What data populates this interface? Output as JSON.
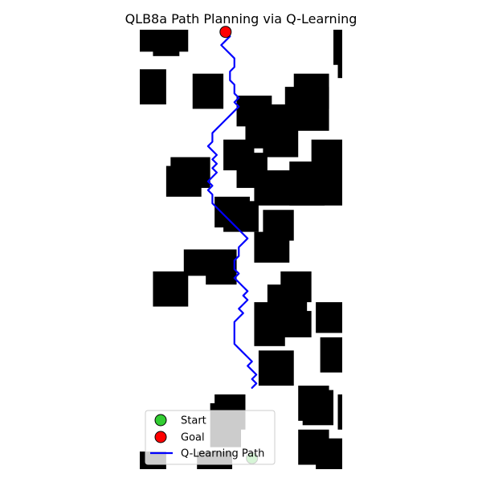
{
  "chart_data": {
    "type": "line",
    "title": "QLB8a Path Planning via Q-Learning",
    "xlabel": "",
    "ylabel": "",
    "xlim": [
      0,
      46
    ],
    "ylim": [
      0,
      100
    ],
    "y_inverted": true,
    "axes_visible": false,
    "grid": false,
    "legend_position": "lower center",
    "colors": {
      "obstacle": "#000000",
      "free": "#ffffff",
      "path": "#0000ff",
      "start": "#32cd32",
      "goal": "#ff0000"
    },
    "obstacles": [
      [
        0,
        0,
        11,
        5
      ],
      [
        3,
        4,
        9,
        6
      ],
      [
        44,
        0,
        46,
        8
      ],
      [
        45,
        7,
        46,
        11
      ],
      [
        0,
        9,
        6,
        17
      ],
      [
        12,
        10,
        19,
        18
      ],
      [
        35,
        10,
        43,
        18
      ],
      [
        33,
        13,
        43,
        23
      ],
      [
        22,
        15,
        30,
        22
      ],
      [
        24,
        17,
        34,
        27
      ],
      [
        28,
        20,
        36,
        29
      ],
      [
        39,
        25,
        46,
        38
      ],
      [
        19,
        25,
        26,
        32
      ],
      [
        22,
        28,
        29,
        36
      ],
      [
        34,
        30,
        46,
        40
      ],
      [
        26,
        32,
        42,
        40
      ],
      [
        7,
        29,
        16,
        36
      ],
      [
        6,
        31,
        14,
        38
      ],
      [
        17,
        38,
        25,
        45
      ],
      [
        19,
        39,
        27,
        46
      ],
      [
        28,
        41,
        35,
        48
      ],
      [
        26,
        46,
        34,
        53
      ],
      [
        10,
        50,
        22,
        56
      ],
      [
        15,
        51,
        22,
        58
      ],
      [
        3,
        55,
        11,
        63
      ],
      [
        32,
        55,
        39,
        62
      ],
      [
        29,
        58,
        38,
        65
      ],
      [
        26,
        62,
        33,
        72
      ],
      [
        29,
        64,
        39,
        70
      ],
      [
        40,
        62,
        46,
        69
      ],
      [
        41,
        70,
        46,
        78
      ],
      [
        27,
        73,
        35,
        81
      ],
      [
        36,
        81,
        43,
        89
      ],
      [
        37,
        82,
        44,
        90
      ],
      [
        45,
        83,
        46,
        91
      ],
      [
        17,
        83,
        24,
        91
      ],
      [
        16,
        85,
        23,
        95
      ],
      [
        36,
        91,
        43,
        99
      ],
      [
        40,
        93,
        46,
        100
      ],
      [
        0,
        96,
        6,
        100
      ],
      [
        13,
        96,
        21,
        100
      ]
    ],
    "series": [
      {
        "name": "Q-Learning Path",
        "x": [
          19.5,
          20.5,
          19.5,
          18.5,
          19.5,
          20.5,
          21.5,
          21.5,
          20.5,
          20.5,
          21.5,
          21.5,
          22.5,
          21.5,
          22.5,
          21.5,
          20.5,
          19.5,
          18.5,
          17.5,
          16.5,
          16.5,
          15.5,
          16.5,
          17.5,
          16.5,
          17.5,
          16.5,
          17.5,
          16.5,
          15.5,
          16.5,
          15.5,
          16.5,
          16.5,
          17.5,
          18.5,
          19.5,
          20.5,
          21.5,
          22.5,
          23.5,
          24.5,
          23.5,
          22.5,
          22.5,
          21.5,
          21.5,
          22.5,
          21.5,
          22.5,
          23.5,
          24.5,
          23.5,
          24.5,
          23.5,
          22.5,
          23.5,
          22.5,
          21.5,
          21.5,
          21.5,
          22.5,
          23.5,
          24.5,
          25.5,
          24.5,
          25.5,
          26.5,
          25.5,
          26.5,
          25.5
        ],
        "y": [
          0.5,
          1.5,
          2.5,
          3.5,
          4.5,
          5.5,
          6.5,
          8.5,
          9.5,
          11.5,
          12.5,
          14.5,
          15.5,
          16.5,
          17.5,
          18.5,
          19.5,
          20.5,
          21.5,
          22.5,
          23.5,
          25.5,
          26.5,
          27.5,
          28.5,
          29.5,
          30.5,
          31.5,
          32.5,
          33.5,
          34.5,
          35.5,
          36.5,
          37.5,
          39.5,
          40.5,
          41.5,
          42.5,
          43.5,
          44.5,
          45.5,
          46.5,
          47.5,
          48.5,
          49.5,
          51.5,
          52.5,
          54.5,
          55.5,
          56.5,
          57.5,
          58.5,
          59.5,
          60.5,
          61.5,
          62.5,
          63.5,
          64.5,
          65.5,
          66.5,
          68.5,
          71.5,
          72.5,
          73.5,
          74.5,
          75.5,
          76.5,
          77.5,
          78.5,
          79.5,
          80.5,
          81.5
        ]
      }
    ],
    "markers": [
      {
        "name": "Start",
        "x": 25.5,
        "y": 97.5
      },
      {
        "name": "Goal",
        "x": 19.5,
        "y": 0.5
      }
    ],
    "legend": [
      "Start",
      "Goal",
      "Q-Learning Path"
    ]
  }
}
